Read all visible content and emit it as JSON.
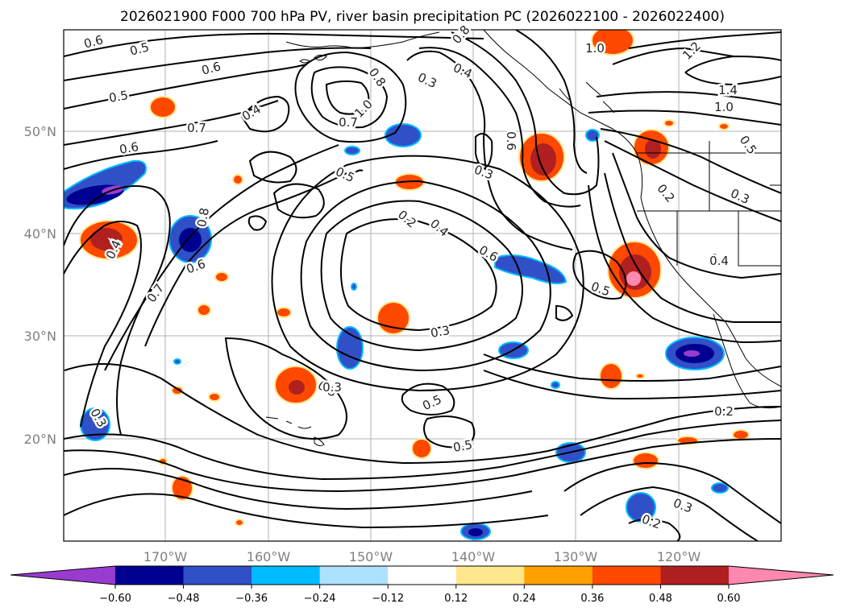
{
  "title": "2026021900 F000 700 hPa PV, river basin precipitation PC (2026022100 - 2026022400)",
  "map": {
    "lat_labels": [
      "50°N",
      "40°N",
      "30°N",
      "20°N"
    ],
    "lon_labels": [
      "170°W",
      "160°W",
      "150°W",
      "140°W",
      "130°W",
      "120°W"
    ],
    "contour_labels": [
      "0.6",
      "0.5",
      "0.6",
      "0.5",
      "0.4",
      "0.7",
      "1.0",
      "0.8",
      "0.3",
      "0.4",
      "0.8",
      "1.0",
      "1.2",
      "1.4",
      "1.0",
      "0.5",
      "0.6",
      "0.5",
      "0.7",
      "0.6",
      "0.3",
      "0.3",
      "0.2",
      "0.8",
      "0.4",
      "0.6",
      "0.7",
      "0.2",
      "0.4",
      "0.6",
      "0.5",
      "0.4",
      "0.3",
      "0.3",
      "0.5",
      "0.5",
      "0.2",
      "0.3",
      "0.3",
      "0.2",
      "0.3",
      "0.4",
      "0.6",
      "0.8",
      "0.4"
    ]
  },
  "colorbar": {
    "ticks": [
      "−0.60",
      "−0.48",
      "−0.36",
      "−0.24",
      "−0.12",
      "0.12",
      "0.24",
      "0.36",
      "0.48",
      "0.60"
    ],
    "colors": [
      "#9a3bd0",
      "#000090",
      "#3050c8",
      "#00bcff",
      "#ade2ff",
      "#ffffff",
      "#ffe88c",
      "#ffa000",
      "#ff4800",
      "#b02020",
      "#ff88b0",
      "#ff88b0"
    ]
  }
}
